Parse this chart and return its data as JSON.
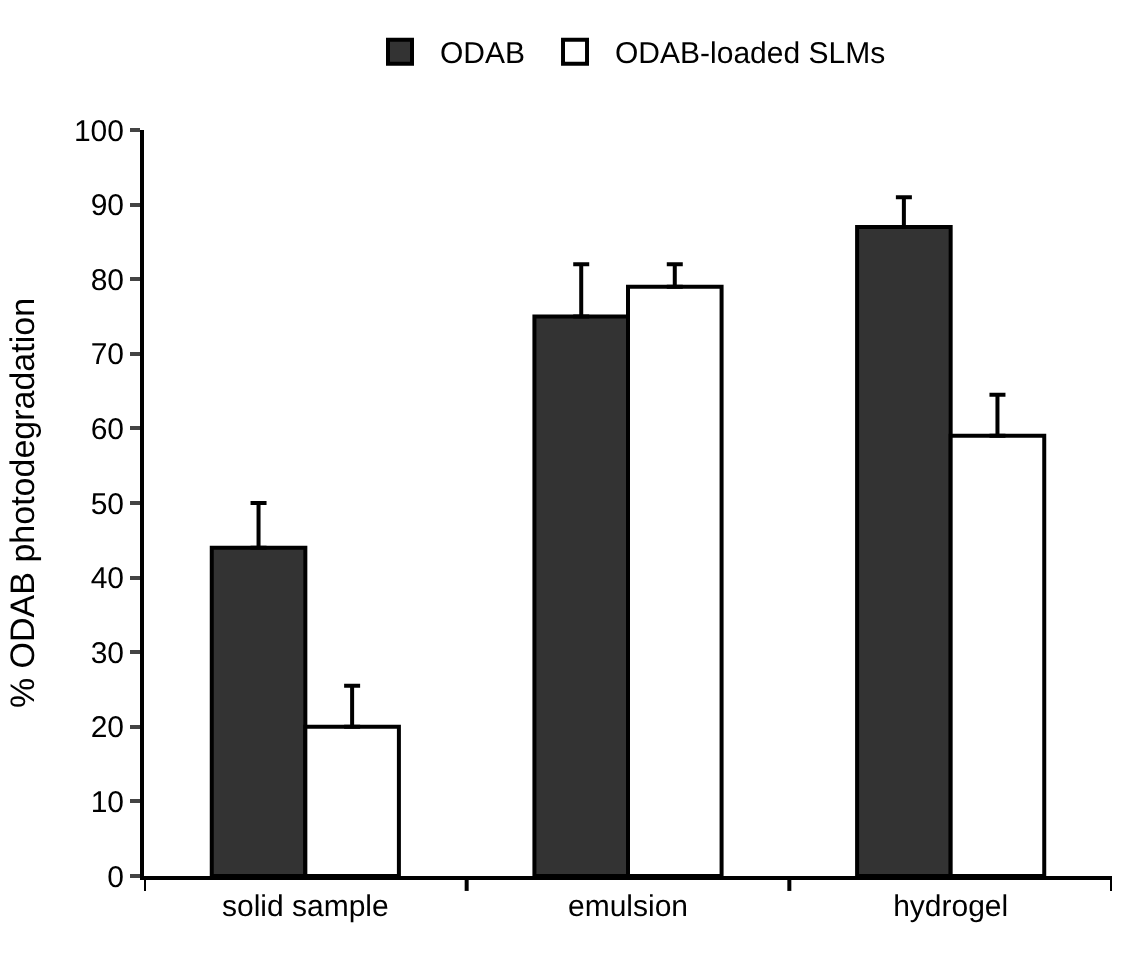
{
  "chart_data": {
    "type": "bar",
    "ylabel": "% ODAB photodegradation",
    "categories": [
      "solid sample",
      "emulsion",
      "hydrogel"
    ],
    "series": [
      {
        "name": "ODAB",
        "color": "#333333",
        "values": [
          44,
          75,
          87
        ],
        "errors": [
          [
            44,
            50
          ],
          [
            75,
            82
          ],
          [
            87,
            91
          ]
        ]
      },
      {
        "name": "ODAB-loaded SLMs",
        "color": "#ffffff",
        "values": [
          20,
          79,
          59
        ],
        "errors": [
          [
            20,
            25.5
          ],
          [
            79,
            82
          ],
          [
            59,
            64.5
          ]
        ]
      }
    ],
    "ylim": [
      0,
      100
    ],
    "yticks": [
      0,
      10,
      20,
      30,
      40,
      50,
      60,
      70,
      80,
      90,
      100
    ],
    "grid": false,
    "legend": "top"
  }
}
